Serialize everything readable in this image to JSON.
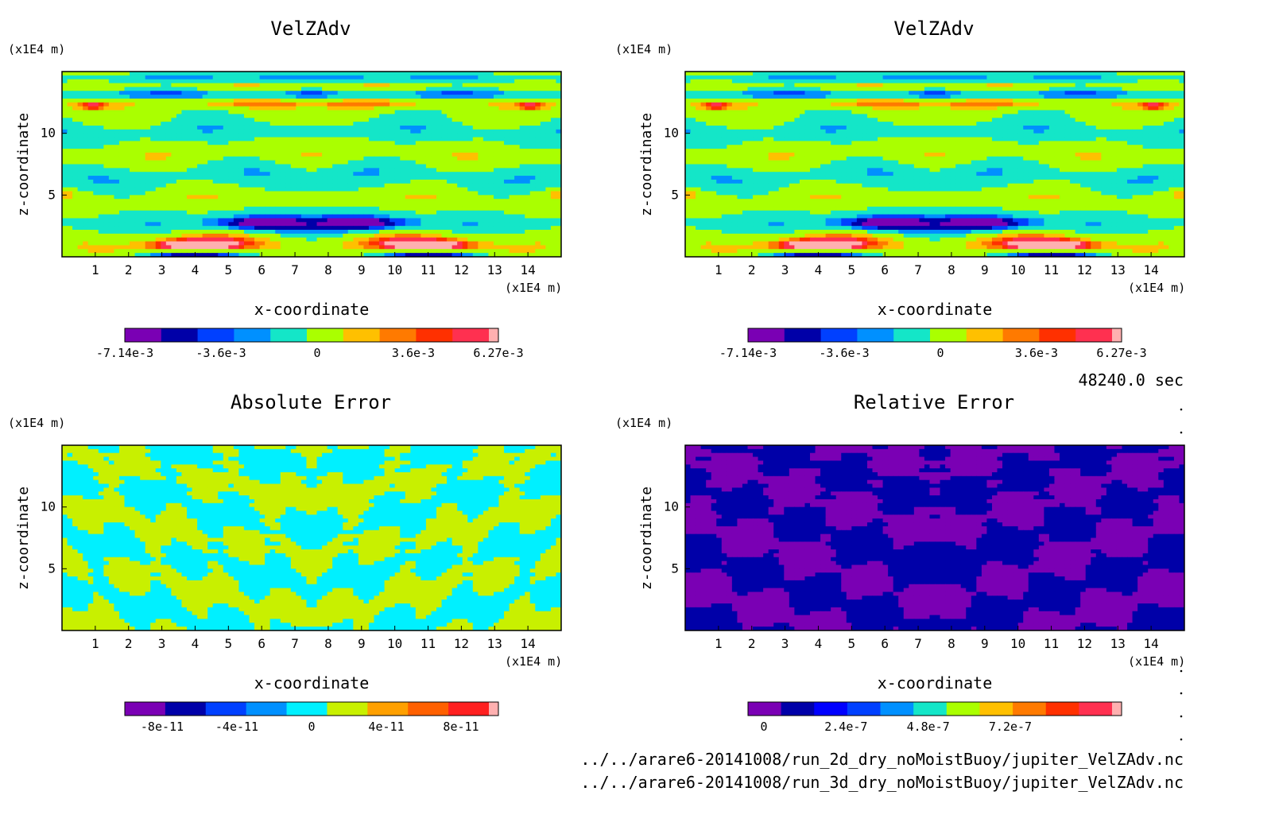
{
  "chart_data": [
    {
      "type": "heatmap",
      "title": "VelZAdv",
      "xlabel": "x-coordinate",
      "ylabel": "z-coordinate",
      "x_unit": "(x1E4 m)",
      "y_unit": "(x1E4 m)",
      "xlim": [
        0,
        15
      ],
      "ylim": [
        0,
        15
      ],
      "x_ticks": [
        "1",
        "2",
        "3",
        "4",
        "5",
        "6",
        "7",
        "8",
        "9",
        "10",
        "11",
        "12",
        "13",
        "14"
      ],
      "y_ticks": [
        "5",
        "10"
      ],
      "colorbar": {
        "palette": [
          "#7a00b4",
          "#0000a8",
          "#0040ff",
          "#0090ff",
          "#14e6c8",
          "#aaff00",
          "#ffc000",
          "#ff7a00",
          "#ff3000",
          "#ff3050",
          "#ffb0b0"
        ],
        "labels": [
          "-7.14e-3",
          "-3.6e-3",
          "0",
          "3.6e-3",
          "6.27e-3"
        ]
      }
    },
    {
      "type": "heatmap",
      "title": "VelZAdv",
      "xlabel": "x-coordinate",
      "ylabel": "z-coordinate",
      "x_unit": "(x1E4 m)",
      "y_unit": "(x1E4 m)",
      "xlim": [
        0,
        15
      ],
      "ylim": [
        0,
        15
      ],
      "x_ticks": [
        "1",
        "2",
        "3",
        "4",
        "5",
        "6",
        "7",
        "8",
        "9",
        "10",
        "11",
        "12",
        "13",
        "14"
      ],
      "y_ticks": [
        "5",
        "10"
      ],
      "colorbar": {
        "palette": [
          "#7a00b4",
          "#0000a8",
          "#0040ff",
          "#0090ff",
          "#14e6c8",
          "#aaff00",
          "#ffc000",
          "#ff7a00",
          "#ff3000",
          "#ff3050",
          "#ffb0b0"
        ],
        "labels": [
          "-7.14e-3",
          "-3.6e-3",
          "0",
          "3.6e-3",
          "6.27e-3"
        ]
      }
    },
    {
      "type": "heatmap",
      "title": "Absolute Error",
      "xlabel": "x-coordinate",
      "ylabel": "z-coordinate",
      "x_unit": "(x1E4 m)",
      "y_unit": "(x1E4 m)",
      "xlim": [
        0,
        15
      ],
      "ylim": [
        0,
        15
      ],
      "x_ticks": [
        "1",
        "2",
        "3",
        "4",
        "5",
        "6",
        "7",
        "8",
        "9",
        "10",
        "11",
        "12",
        "13",
        "14"
      ],
      "y_ticks": [
        "5",
        "10"
      ],
      "colorbar": {
        "palette": [
          "#7a00b4",
          "#0000a8",
          "#0040ff",
          "#0090ff",
          "#00f0ff",
          "#c8f000",
          "#ffa000",
          "#ff6000",
          "#ff2020",
          "#ffb0b0"
        ],
        "labels": [
          "-8e-11",
          "-4e-11",
          "0",
          "4e-11",
          "8e-11"
        ]
      }
    },
    {
      "type": "heatmap",
      "title": "Relative Error",
      "xlabel": "x-coordinate",
      "ylabel": "z-coordinate",
      "x_unit": "(x1E4 m)",
      "y_unit": "(x1E4 m)",
      "xlim": [
        0,
        15
      ],
      "ylim": [
        0,
        15
      ],
      "x_ticks": [
        "1",
        "2",
        "3",
        "4",
        "5",
        "6",
        "7",
        "8",
        "9",
        "10",
        "11",
        "12",
        "13",
        "14"
      ],
      "y_ticks": [
        "5",
        "10"
      ],
      "colorbar": {
        "palette": [
          "#7a00b4",
          "#0000a8",
          "#0000ff",
          "#0040ff",
          "#0090ff",
          "#14e6c8",
          "#aaff00",
          "#ffc000",
          "#ff7a00",
          "#ff3000",
          "#ff3050",
          "#ffb0b0"
        ],
        "labels": [
          "0",
          "2.4e-7",
          "4.8e-7",
          "7.2e-7"
        ]
      }
    }
  ],
  "time_label": "48240.0 sec",
  "file_paths": [
    "../../arare6-20141008/run_2d_dry_noMoistBuoy/jupiter_VelZAdv.nc",
    "../../arare6-20141008/run_3d_dry_noMoistBuoy/jupiter_VelZAdv.nc"
  ]
}
